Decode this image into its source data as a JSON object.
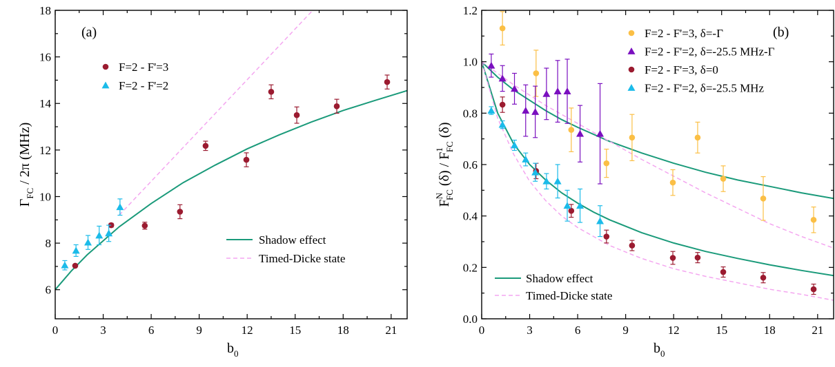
{
  "chart_data": [
    {
      "type": "scatter",
      "panel_label": "(a)",
      "xlabel": "b",
      "xlabel_sub": "0",
      "ylabel": "Γ",
      "ylabel_sub": "FC",
      "ylabel_tail": " / 2π (MHz)",
      "xlim": [
        0,
        22
      ],
      "ylim": [
        4.75,
        18
      ],
      "xticks": [
        0,
        3,
        6,
        9,
        12,
        15,
        18,
        21
      ],
      "yticks": [
        6,
        8,
        10,
        12,
        14,
        16,
        18
      ],
      "grid": false,
      "legend_position": "top-left",
      "series": [
        {
          "name": "F=2 - F'=3",
          "marker": "circle",
          "color": "#9b1b30",
          "x": [
            1.25,
            3.5,
            5.6,
            7.8,
            9.4,
            11.95,
            13.5,
            15.1,
            17.6,
            20.75
          ],
          "y": [
            7.03,
            8.77,
            8.75,
            9.35,
            12.18,
            11.58,
            14.5,
            13.5,
            13.88,
            14.92
          ],
          "err": [
            0.05,
            0.08,
            0.15,
            0.3,
            0.2,
            0.3,
            0.3,
            0.35,
            0.3,
            0.3
          ]
        },
        {
          "name": "F=2 - F'=2",
          "marker": "triangle",
          "color": "#1bbbe9",
          "x": [
            0.6,
            1.3,
            2.05,
            2.75,
            3.35,
            4.05
          ],
          "y": [
            7.05,
            7.68,
            8.03,
            8.33,
            8.42,
            9.55
          ],
          "err": [
            0.2,
            0.25,
            0.3,
            0.4,
            0.35,
            0.35
          ]
        }
      ],
      "curves": [
        {
          "name": "Shadow effect",
          "style": "solid",
          "color": "#1a9a7a",
          "x": [
            0,
            1,
            2,
            3,
            4,
            6,
            8,
            10,
            12,
            14,
            16,
            18,
            20,
            22
          ],
          "y": [
            6.0,
            6.8,
            7.5,
            8.1,
            8.7,
            9.7,
            10.6,
            11.35,
            12.05,
            12.65,
            13.2,
            13.7,
            14.13,
            14.55
          ]
        },
        {
          "name": "Timed-Dicke state",
          "style": "dashed",
          "color": "#f4a6f0",
          "x": [
            4,
            16.1
          ],
          "y": [
            9.2,
            18
          ]
        }
      ]
    },
    {
      "type": "scatter",
      "panel_label": "(b)",
      "xlabel": "b",
      "xlabel_sub": "0",
      "ylabel": "F",
      "ylabel_parts": [
        "F",
        "N",
        "FC",
        " (δ) / F",
        "1",
        "FC",
        " (δ)"
      ],
      "xlim": [
        0,
        22
      ],
      "ylim": [
        0.0,
        1.2
      ],
      "xticks": [
        0,
        3,
        6,
        9,
        12,
        15,
        18,
        21
      ],
      "yticks": [
        0.0,
        0.2,
        0.4,
        0.6,
        0.8,
        1.0,
        1.2
      ],
      "grid": false,
      "legend_position": "top-right",
      "series": [
        {
          "name": "F=2 - F'=3, δ=-Γ",
          "marker": "circle",
          "color": "#fbbf45",
          "x": [
            1.3,
            3.4,
            5.6,
            7.8,
            9.4,
            11.95,
            13.5,
            15.1,
            17.6,
            20.75
          ],
          "y": [
            1.13,
            0.955,
            0.735,
            0.605,
            0.705,
            0.53,
            0.705,
            0.545,
            0.468,
            0.385
          ],
          "err": [
            0.065,
            0.09,
            0.085,
            0.055,
            0.09,
            0.05,
            0.06,
            0.05,
            0.085,
            0.05
          ]
        },
        {
          "name": "F=2 - F'=2, δ=-25.5 MHz-Γ",
          "marker": "triangle",
          "color": "#7a0fbf",
          "x": [
            0.6,
            1.3,
            2.05,
            2.75,
            3.35,
            4.05,
            4.75,
            5.35,
            6.15,
            7.4
          ],
          "y": [
            0.985,
            0.935,
            0.895,
            0.81,
            0.805,
            0.875,
            0.885,
            0.885,
            0.72,
            0.72
          ],
          "err": [
            0.045,
            0.05,
            0.06,
            0.1,
            0.1,
            0.1,
            0.12,
            0.125,
            0.11,
            0.195
          ]
        },
        {
          "name": "F=2 - F'=3, δ=0",
          "marker": "circle",
          "color": "#9b1b30",
          "x": [
            1.3,
            3.4,
            5.6,
            7.8,
            9.4,
            11.95,
            13.5,
            15.1,
            17.6,
            20.75
          ],
          "y": [
            0.833,
            0.575,
            0.42,
            0.32,
            0.285,
            0.237,
            0.238,
            0.182,
            0.16,
            0.115
          ],
          "err": [
            0.03,
            0.03,
            0.025,
            0.025,
            0.02,
            0.025,
            0.02,
            0.02,
            0.02,
            0.02
          ]
        },
        {
          "name": "F=2 - F'=2, δ=-25.5 MHz",
          "marker": "triangle",
          "color": "#1bbbe9",
          "x": [
            0.6,
            1.3,
            2.05,
            2.75,
            3.35,
            4.05,
            4.75,
            5.35,
            6.15,
            7.4
          ],
          "y": [
            0.81,
            0.755,
            0.675,
            0.62,
            0.57,
            0.535,
            0.535,
            0.44,
            0.44,
            0.38
          ],
          "err": [
            0.015,
            0.015,
            0.02,
            0.025,
            0.035,
            0.03,
            0.065,
            0.06,
            0.065,
            0.06
          ]
        }
      ],
      "curves": [
        {
          "name": "Shadow effect",
          "style": "solid",
          "color": "#1a9a7a",
          "x": [
            0,
            1,
            2,
            3,
            4,
            5,
            6,
            8,
            10,
            12,
            14,
            16,
            18,
            20,
            22
          ],
          "y": [
            1.0,
            0.94,
            0.89,
            0.85,
            0.81,
            0.775,
            0.745,
            0.69,
            0.645,
            0.605,
            0.57,
            0.54,
            0.515,
            0.49,
            0.468
          ]
        },
        {
          "name": "",
          "style": "solid",
          "color": "#1a9a7a",
          "x": [
            0,
            1,
            2,
            3,
            4,
            5,
            6,
            7,
            8,
            10,
            12,
            14,
            16,
            18,
            20,
            22
          ],
          "y": [
            1.0,
            0.8,
            0.68,
            0.6,
            0.54,
            0.49,
            0.45,
            0.415,
            0.385,
            0.335,
            0.295,
            0.262,
            0.235,
            0.21,
            0.188,
            0.168
          ]
        },
        {
          "name": "",
          "style": "dashed",
          "color": "#f4a6f0",
          "x": [
            0,
            2,
            4,
            6,
            8,
            10,
            12,
            14,
            16,
            18,
            20,
            22
          ],
          "y": [
            1.0,
            0.91,
            0.83,
            0.76,
            0.69,
            0.62,
            0.555,
            0.49,
            0.43,
            0.37,
            0.32,
            0.275
          ]
        },
        {
          "name": "Timed-Dicke state",
          "style": "dashed",
          "color": "#f4a6f0",
          "x": [
            0,
            1,
            2,
            3,
            4,
            5,
            6,
            8,
            10,
            12,
            14,
            16,
            18,
            20,
            22
          ],
          "y": [
            1.0,
            0.78,
            0.64,
            0.535,
            0.46,
            0.4,
            0.355,
            0.285,
            0.235,
            0.195,
            0.165,
            0.14,
            0.115,
            0.095,
            0.072
          ]
        }
      ]
    }
  ]
}
